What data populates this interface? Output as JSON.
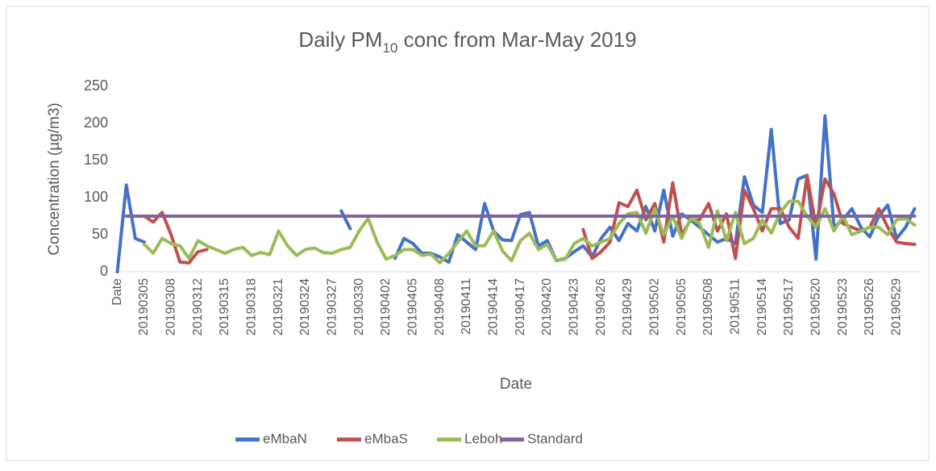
{
  "chart_data": {
    "type": "line",
    "title": {
      "before": "Daily PM",
      "subscript": "10",
      "after": " conc from Mar-May 2019"
    },
    "x_label": "Date",
    "y_label": "Concentration (µg/m3)",
    "ylim": [
      0,
      250
    ],
    "yticks": [
      0,
      50,
      100,
      150,
      200,
      250
    ],
    "grid": false,
    "legend": "bottom",
    "categories": [
      "Date",
      null,
      null,
      "20190305",
      null,
      null,
      "20190308",
      null,
      null,
      "20190312",
      null,
      null,
      "20190315",
      null,
      null,
      "20190318",
      null,
      null,
      "20190321",
      null,
      null,
      "20190324",
      null,
      null,
      "20190327",
      null,
      null,
      "20190330",
      null,
      null,
      "20190402",
      null,
      null,
      "20190405",
      null,
      null,
      "20190408",
      null,
      null,
      "20190411",
      null,
      null,
      "20190414",
      null,
      null,
      "20190417",
      null,
      null,
      "20190420",
      null,
      null,
      "20190423",
      null,
      null,
      "20190426",
      null,
      null,
      "20190429",
      null,
      null,
      "20190502",
      null,
      null,
      "20190505",
      null,
      null,
      "20190508",
      null,
      null,
      "20190511",
      null,
      null,
      "20190514",
      null,
      null,
      "20190517",
      null,
      null,
      "20190520",
      null,
      null,
      "20190523",
      null,
      null,
      "20190526",
      null,
      null,
      "20190529",
      null,
      null
    ],
    "series": [
      {
        "name": "eMbaN",
        "color": "#4472c4",
        "values": [
          0,
          117,
          45,
          40,
          null,
          null,
          null,
          null,
          null,
          null,
          null,
          null,
          null,
          null,
          null,
          null,
          null,
          null,
          null,
          null,
          null,
          null,
          null,
          null,
          null,
          82,
          58,
          null,
          null,
          null,
          null,
          18,
          45,
          38,
          25,
          25,
          20,
          13,
          50,
          40,
          30,
          92,
          55,
          43,
          42,
          77,
          80,
          35,
          42,
          15,
          18,
          27,
          35,
          20,
          45,
          60,
          42,
          65,
          55,
          88,
          55,
          110,
          48,
          78,
          70,
          60,
          50,
          40,
          45,
          38,
          128,
          90,
          80,
          192,
          65,
          70,
          125,
          130,
          17,
          210,
          60,
          70,
          85,
          60,
          47,
          75,
          90,
          45,
          60,
          85
        ]
      },
      {
        "name": "eMbaS",
        "color": "#c0504d",
        "values": [
          null,
          null,
          null,
          75,
          67,
          80,
          50,
          13,
          12,
          27,
          30,
          null,
          null,
          null,
          null,
          null,
          null,
          null,
          null,
          null,
          null,
          null,
          null,
          null,
          null,
          null,
          null,
          null,
          null,
          null,
          null,
          null,
          null,
          null,
          null,
          null,
          null,
          null,
          null,
          null,
          null,
          null,
          null,
          null,
          null,
          null,
          null,
          null,
          null,
          null,
          null,
          null,
          57,
          18,
          27,
          40,
          93,
          88,
          110,
          70,
          92,
          40,
          120,
          50,
          70,
          70,
          92,
          55,
          78,
          18,
          110,
          85,
          55,
          85,
          85,
          60,
          45,
          130,
          60,
          125,
          105,
          65,
          60,
          55,
          60,
          85,
          60,
          40,
          38,
          37
        ]
      },
      {
        "name": "Leboh",
        "color": "#9bbb59",
        "values": [
          null,
          null,
          null,
          37,
          25,
          45,
          38,
          35,
          18,
          42,
          35,
          30,
          25,
          30,
          33,
          22,
          26,
          23,
          55,
          35,
          22,
          30,
          32,
          26,
          25,
          30,
          33,
          55,
          72,
          40,
          17,
          22,
          30,
          30,
          22,
          24,
          12,
          25,
          40,
          55,
          35,
          35,
          55,
          28,
          15,
          42,
          52,
          30,
          37,
          15,
          17,
          38,
          45,
          35,
          40,
          45,
          65,
          78,
          80,
          52,
          85,
          50,
          75,
          45,
          72,
          65,
          33,
          82,
          42,
          80,
          38,
          45,
          70,
          52,
          80,
          95,
          95,
          75,
          60,
          85,
          55,
          75,
          50,
          55,
          60,
          60,
          50,
          70,
          72,
          63
        ]
      },
      {
        "name": "Standard",
        "color": "#8064a2",
        "values": [
          null,
          75,
          75,
          75,
          75,
          75,
          75,
          75,
          75,
          75,
          75,
          75,
          75,
          75,
          75,
          75,
          75,
          75,
          75,
          75,
          75,
          75,
          75,
          75,
          75,
          75,
          75,
          75,
          75,
          75,
          75,
          75,
          75,
          75,
          75,
          75,
          75,
          75,
          75,
          75,
          75,
          75,
          75,
          75,
          75,
          75,
          75,
          75,
          75,
          75,
          75,
          75,
          75,
          75,
          75,
          75,
          75,
          75,
          75,
          75,
          75,
          75,
          75,
          75,
          75,
          75,
          75,
          75,
          75,
          75,
          75,
          75,
          75,
          75,
          75,
          75,
          75,
          75,
          75,
          75,
          75,
          75,
          75,
          75,
          75,
          75,
          75,
          75,
          75,
          75
        ]
      }
    ]
  }
}
